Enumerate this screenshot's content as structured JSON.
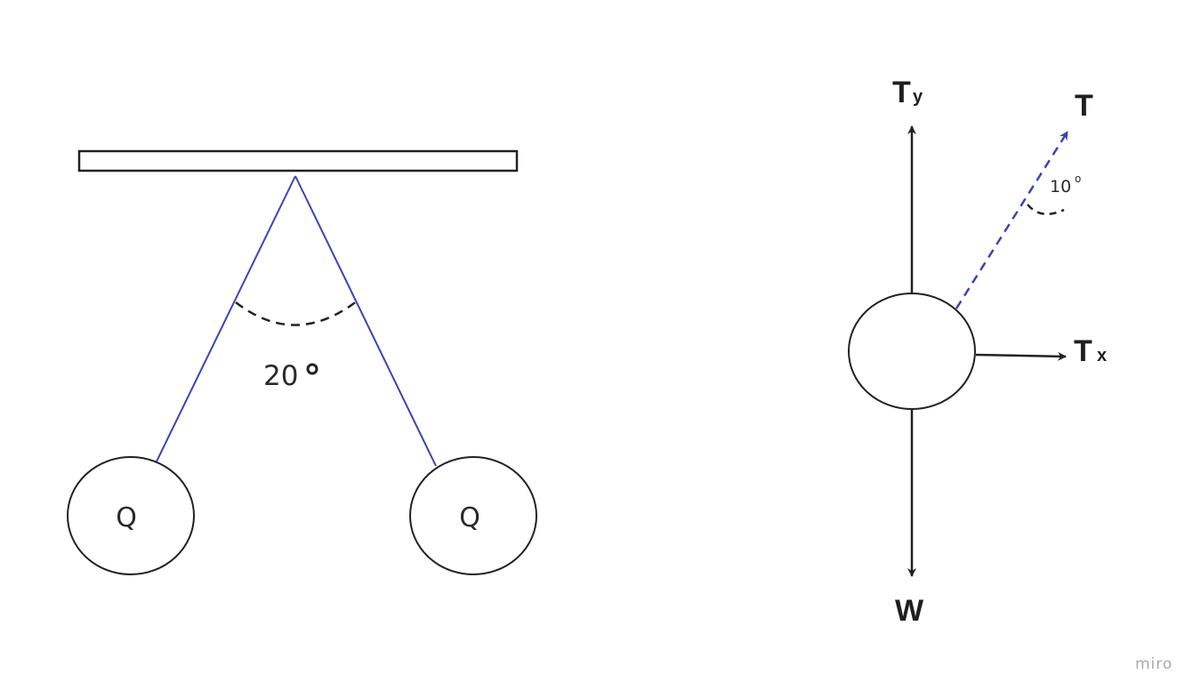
{
  "left_diagram": {
    "angle_label": "20",
    "angle_unit": "°",
    "charge_left_label": "Q",
    "charge_right_label": "Q"
  },
  "right_diagram": {
    "ty_main": "T",
    "ty_sub": "y",
    "t_label": "T",
    "tx_main": "T",
    "tx_sub": "x",
    "w_label": "W",
    "small_angle_label": "10",
    "small_angle_unit": "o"
  },
  "watermark": "miro",
  "colors": {
    "string_line": "#3b44b3",
    "tension_vector": "#3b44b3",
    "stroke": "#222222"
  }
}
